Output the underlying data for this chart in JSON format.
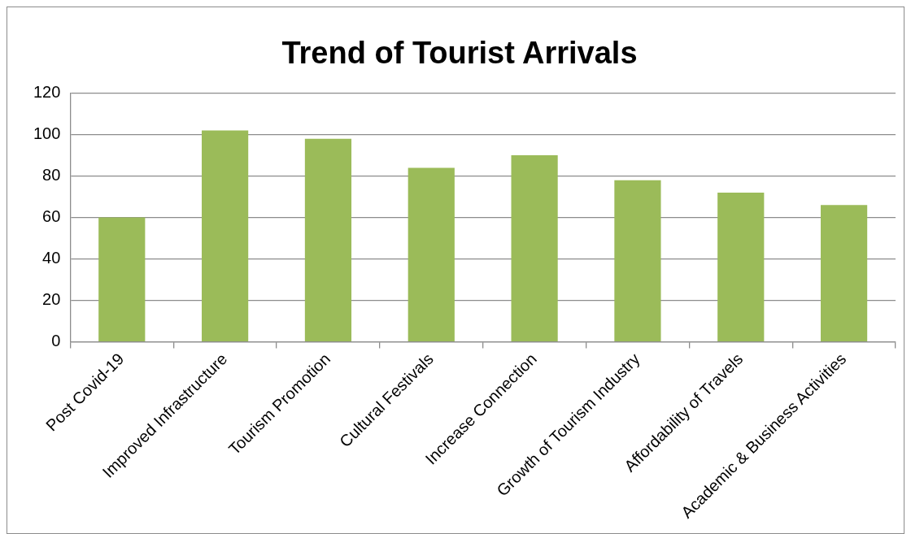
{
  "chart_data": {
    "type": "bar",
    "title": "Trend of Tourist Arrivals",
    "categories": [
      "Post Covid-19",
      "Improved Infrastructure",
      "Tourism Promotion",
      "Cultural Festivals",
      "Increase Connection",
      "Growth of Tourism Industry",
      "Affordability of Travels",
      "Academic & Business Activities"
    ],
    "values": [
      60,
      102,
      98,
      84,
      90,
      78,
      72,
      66
    ],
    "color": "#9bbb59",
    "ylim": [
      0,
      120
    ],
    "yticks": [
      0,
      20,
      40,
      60,
      80,
      100,
      120
    ],
    "grid": "y",
    "legend": false
  }
}
